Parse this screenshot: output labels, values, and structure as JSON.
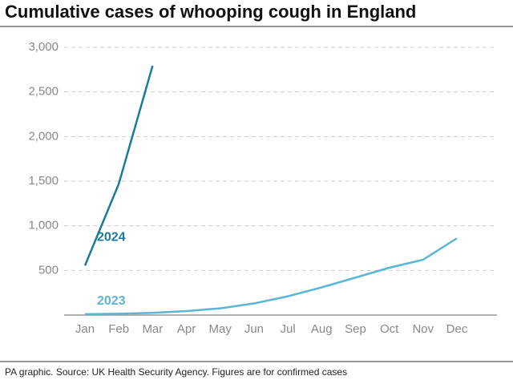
{
  "chart_data": {
    "type": "line",
    "title": "Cumulative cases of whooping cough in England",
    "categories": [
      "Jan",
      "Feb",
      "Mar",
      "Apr",
      "May",
      "Jun",
      "Jul",
      "Aug",
      "Sep",
      "Oct",
      "Nov",
      "Dec"
    ],
    "series": [
      {
        "name": "2024",
        "color": "#1a7a9c",
        "values": [
          555,
          1470,
          2793,
          null,
          null,
          null,
          null,
          null,
          null,
          null,
          null,
          null
        ]
      },
      {
        "name": "2023",
        "color": "#5bb5d5",
        "values": [
          10,
          15,
          25,
          45,
          75,
          130,
          210,
          310,
          420,
          530,
          620,
          860
        ]
      }
    ],
    "ylim": [
      0,
      3000
    ],
    "yticks": [
      500,
      {
        "value": 1000,
        "label": "1,000"
      },
      {
        "value": 1500,
        "label": "1,500"
      },
      {
        "value": 2000,
        "label": "2,000"
      },
      {
        "value": 2500,
        "label": "2,500"
      },
      {
        "value": 3000,
        "label": "3,000"
      }
    ],
    "grid": true,
    "footer": "PA graphic. Source: UK Health Security Agency. Figures are for confirmed cases"
  }
}
